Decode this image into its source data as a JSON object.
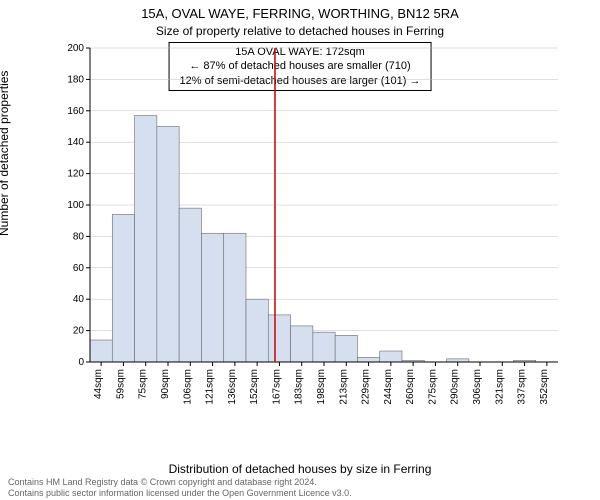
{
  "title_main": "15A, OVAL WAYE, FERRING, WORTHING, BN12 5RA",
  "title_sub": "Size of property relative to detached houses in Ferring",
  "annotation": {
    "line1": "15A OVAL WAYE: 172sqm",
    "line2": "← 87% of detached houses are smaller (710)",
    "line3": "12% of semi-detached houses are larger (101) →"
  },
  "chart": {
    "type": "histogram",
    "ylabel": "Number of detached properties",
    "xlabel": "Distribution of detached houses by size in Ferring",
    "ylim": [
      0,
      200
    ],
    "ytick_step": 20,
    "yticks": [
      0,
      20,
      40,
      60,
      80,
      100,
      120,
      140,
      160,
      180,
      200
    ],
    "xticks": [
      "44sqm",
      "59sqm",
      "75sqm",
      "90sqm",
      "106sqm",
      "121sqm",
      "136sqm",
      "152sqm",
      "167sqm",
      "183sqm",
      "198sqm",
      "213sqm",
      "229sqm",
      "244sqm",
      "260sqm",
      "275sqm",
      "290sqm",
      "306sqm",
      "321sqm",
      "337sqm",
      "352sqm"
    ],
    "values": [
      14,
      94,
      157,
      150,
      98,
      82,
      82,
      40,
      30,
      23,
      19,
      17,
      3,
      7,
      1,
      0,
      2,
      0,
      0,
      1,
      0
    ],
    "bar_fill": "#d5dff0",
    "bar_stroke": "#6b6b6b",
    "grid_color": "#bfbfbf",
    "marker_line_color": "#cc0000",
    "marker_x_index": 8.3,
    "background_color": "#ffffff",
    "axis_fontsize": 10,
    "label_fontsize": 12
  },
  "footer": {
    "line1": "Contains HM Land Registry data © Crown copyright and database right 2024.",
    "line2": "Contains public sector information licensed under the Open Government Licence v3.0."
  }
}
